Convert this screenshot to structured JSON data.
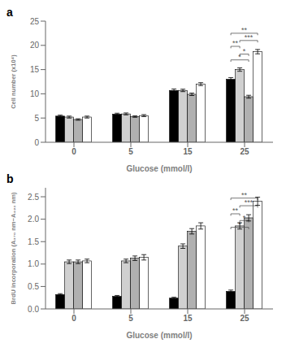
{
  "chart_data": [
    {
      "type": "bar",
      "title": "a",
      "x_label": "Glucose (mmol/l)",
      "y_label": "Cell number (x10⁴)",
      "categories": [
        "0",
        "5",
        "15",
        "25"
      ],
      "series": [
        {
          "color": "black",
          "values": [
            5.4,
            5.8,
            10.7,
            13.0
          ],
          "errors": [
            0.2,
            0.2,
            0.3,
            0.35
          ]
        },
        {
          "color": "#d0d0d0",
          "values": [
            5.2,
            5.85,
            10.7,
            15.0
          ],
          "errors": [
            0.2,
            0.2,
            0.25,
            0.35
          ]
        },
        {
          "color": "#b0b0b0",
          "values": [
            4.7,
            5.3,
            9.9,
            9.4
          ],
          "errors": [
            0.15,
            0.15,
            0.25,
            0.3
          ]
        },
        {
          "color": "white",
          "values": [
            5.2,
            5.5,
            12.0,
            18.7
          ],
          "errors": [
            0.2,
            0.2,
            0.3,
            0.45
          ]
        }
      ],
      "ylim": [
        0,
        25
      ],
      "yticks": [
        0,
        5,
        10,
        15,
        20,
        25
      ],
      "annotations": [
        {
          "text": "**",
          "category": "25",
          "from": 0,
          "to": 1,
          "y": 19.8
        },
        {
          "text": "*",
          "category": "25",
          "from": 0,
          "to": 2,
          "y": 17.0
        },
        {
          "text": "*",
          "category": "25",
          "from": 1,
          "to": 2,
          "y": 18.2
        },
        {
          "text": "**",
          "category": "25",
          "from": 0,
          "to": 3,
          "y": 22.5
        },
        {
          "text": "***",
          "category": "25",
          "from": 1,
          "to": 3,
          "y": 21.0
        }
      ]
    },
    {
      "type": "bar",
      "title": "b",
      "x_label": "Glucose (mmol/l)",
      "y_label": "BrdU incorporation (A₃₇₀ nm−A₄₉₂ nm)",
      "categories": [
        "0",
        "5",
        "15",
        "25"
      ],
      "series": [
        {
          "color": "black",
          "values": [
            0.32,
            0.28,
            0.24,
            0.39
          ],
          "errors": [
            0.02,
            0.02,
            0.02,
            0.03
          ]
        },
        {
          "color": "#d0d0d0",
          "values": [
            1.05,
            1.07,
            1.4,
            1.85
          ],
          "errors": [
            0.04,
            0.04,
            0.05,
            0.07
          ]
        },
        {
          "color": "#b0b0b0",
          "values": [
            1.05,
            1.13,
            1.73,
            2.03
          ],
          "errors": [
            0.04,
            0.05,
            0.06,
            0.07
          ]
        },
        {
          "color": "white",
          "values": [
            1.07,
            1.15,
            1.85,
            2.4
          ],
          "errors": [
            0.04,
            0.06,
            0.07,
            0.09
          ]
        }
      ],
      "ylim": [
        0,
        2.7
      ],
      "yticks": [
        {
          "value": 0,
          "label": "0.0"
        },
        0.5,
        {
          "value": 1,
          "label": "1.0"
        },
        1.5,
        {
          "value": 2,
          "label": "2.0"
        },
        2.5
      ],
      "annotations": [
        {
          "text": "**",
          "category": "25",
          "from": 0,
          "to": 1,
          "y": 2.12
        },
        {
          "text": "*",
          "category": "25",
          "from": 0,
          "to": 2,
          "y": 1.82
        },
        {
          "text": "*",
          "category": "25",
          "from": 1,
          "to": 2,
          "y": 1.97
        },
        {
          "text": "**",
          "category": "25",
          "from": 0,
          "to": 3,
          "y": 2.47
        },
        {
          "text": "***",
          "category": "25",
          "from": 1,
          "to": 3,
          "y": 2.3
        }
      ]
    }
  ]
}
